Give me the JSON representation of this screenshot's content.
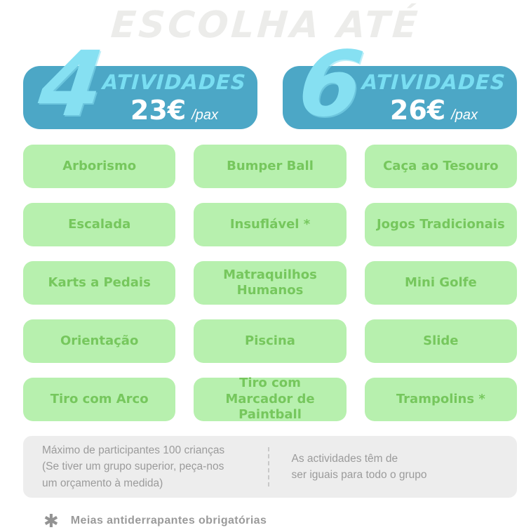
{
  "title": "ESCOLHA ATÉ",
  "colors": {
    "card_blue": "#4CA7C6",
    "accent_cyan": "#86E0F2",
    "activity_green_bg": "#B7F0AE",
    "activity_green_text": "#76C75D",
    "info_gray_bg": "#EDEDED",
    "muted_text": "#9B9B9B",
    "title_gray": "#ECECEA"
  },
  "plans": [
    {
      "count": "4",
      "unit_label": "ATIVIDADES",
      "price": "23€",
      "per": "/pax"
    },
    {
      "count": "6",
      "unit_label": "ATIVIDADES",
      "price": "26€",
      "per": "/pax"
    }
  ],
  "activities": [
    "Arborismo",
    "Bumper Ball",
    "Caça ao Tesouro",
    "Escalada",
    "Insuflável *",
    "Jogos Tradicionais",
    "Karts a Pedais",
    "Matraquilhos Humanos",
    "Mini Golfe",
    "Orientação",
    "Piscina",
    "Slide",
    "Tiro com Arco",
    "Tiro com Marcador de Paintball",
    "Trampolins *"
  ],
  "info": {
    "left_lines": [
      "Máximo de participantes 100 crianças",
      "(Se tiver um grupo superior, peça-nos",
      "um orçamento à medida)"
    ],
    "right_lines": [
      "As actividades têm de",
      "ser iguais para todo o grupo"
    ]
  },
  "footnote": {
    "asterisk": "✱",
    "text": "Meias antiderrapantes obrigatórias"
  }
}
